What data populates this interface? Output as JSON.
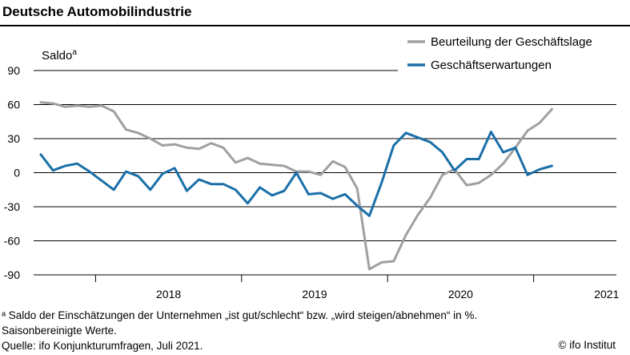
{
  "chart_data": {
    "type": "line",
    "title": "Deutsche Automobilindustrie",
    "ylabel": "Saldo",
    "ylabel_superscript": "a",
    "ylim": [
      -90,
      90
    ],
    "yticks": [
      "90",
      "60",
      "30",
      "0",
      "-30",
      "-60",
      "-90"
    ],
    "xlim": [
      "2017-08",
      "2021-07"
    ],
    "xtick_labels": [
      "2018",
      "2019",
      "2020",
      "2021"
    ],
    "grid": true,
    "legend_position": "top-right",
    "series": [
      {
        "name": "Beurteilung der Geschäftslage",
        "color": "#a0a0a0",
        "values": [
          [
            "2017-08",
            62
          ],
          [
            "2017-09",
            61
          ],
          [
            "2017-10",
            58
          ],
          [
            "2017-11",
            59
          ],
          [
            "2017-12",
            58
          ],
          [
            "2018-01",
            59
          ],
          [
            "2018-02",
            54
          ],
          [
            "2018-03",
            38
          ],
          [
            "2018-04",
            35
          ],
          [
            "2018-05",
            30
          ],
          [
            "2018-06",
            24
          ],
          [
            "2018-07",
            25
          ],
          [
            "2018-08",
            22
          ],
          [
            "2018-09",
            21
          ],
          [
            "2018-10",
            26
          ],
          [
            "2018-11",
            22
          ],
          [
            "2018-12",
            9
          ],
          [
            "2019-01",
            13
          ],
          [
            "2019-02",
            8
          ],
          [
            "2019-03",
            7
          ],
          [
            "2019-04",
            6
          ],
          [
            "2019-05",
            1
          ],
          [
            "2019-06",
            1
          ],
          [
            "2019-07",
            -2
          ],
          [
            "2019-08",
            10
          ],
          [
            "2019-09",
            5
          ],
          [
            "2019-10",
            -14
          ],
          [
            "2019-11",
            -85
          ],
          [
            "2019-12",
            -79
          ],
          [
            "2020-01",
            -78
          ],
          [
            "2020-02",
            -55
          ],
          [
            "2020-03",
            -37
          ],
          [
            "2020-04",
            -22
          ],
          [
            "2020-05",
            -2
          ],
          [
            "2020-06",
            3
          ],
          [
            "2020-07",
            -11
          ],
          [
            "2020-08",
            -9
          ],
          [
            "2020-09",
            -2
          ],
          [
            "2020-10",
            8
          ],
          [
            "2020-11",
            22
          ],
          [
            "2020-12",
            37
          ],
          [
            "2021-01",
            44
          ],
          [
            "2021-02",
            56
          ]
        ]
      },
      {
        "name": "Geschäftserwartungen",
        "color": "#1a6fa8",
        "values": [
          [
            "2017-08",
            16
          ],
          [
            "2017-09",
            2
          ],
          [
            "2017-10",
            6
          ],
          [
            "2017-11",
            8
          ],
          [
            "2017-12",
            1
          ],
          [
            "2018-01",
            -7
          ],
          [
            "2018-02",
            -15
          ],
          [
            "2018-03",
            1
          ],
          [
            "2018-04",
            -3
          ],
          [
            "2018-05",
            -15
          ],
          [
            "2018-06",
            -1
          ],
          [
            "2018-07",
            4
          ],
          [
            "2018-08",
            -16
          ],
          [
            "2018-09",
            -6
          ],
          [
            "2018-10",
            -10
          ],
          [
            "2018-11",
            -10
          ],
          [
            "2018-12",
            -15
          ],
          [
            "2019-01",
            -27
          ],
          [
            "2019-02",
            -13
          ],
          [
            "2019-03",
            -20
          ],
          [
            "2019-04",
            -16
          ],
          [
            "2019-05",
            0
          ],
          [
            "2019-06",
            -19
          ],
          [
            "2019-07",
            -18
          ],
          [
            "2019-08",
            -23
          ],
          [
            "2019-09",
            -19
          ],
          [
            "2019-10",
            -29
          ],
          [
            "2019-11",
            -38
          ],
          [
            "2019-12",
            -9
          ],
          [
            "2020-01",
            24
          ],
          [
            "2020-02",
            35
          ],
          [
            "2020-03",
            31
          ],
          [
            "2020-04",
            27
          ],
          [
            "2020-05",
            18
          ],
          [
            "2020-06",
            2
          ],
          [
            "2020-07",
            12
          ],
          [
            "2020-08",
            12
          ],
          [
            "2020-09",
            36
          ],
          [
            "2020-10",
            18
          ],
          [
            "2020-11",
            22
          ],
          [
            "2020-12",
            -2
          ],
          [
            "2021-01",
            3
          ],
          [
            "2021-02",
            6
          ]
        ]
      }
    ]
  },
  "footer": {
    "footnote": "ᵃ Saldo der Einschätzungen der Unternehmen „ist gut/schlecht“ bzw. „wird steigen/abnehmen“ in %.",
    "note": "Saisonbereinigte Werte.",
    "source": "Quelle: ifo Konjunkturumfragen, Juli 2021.",
    "credit": "© ifo Institut"
  }
}
